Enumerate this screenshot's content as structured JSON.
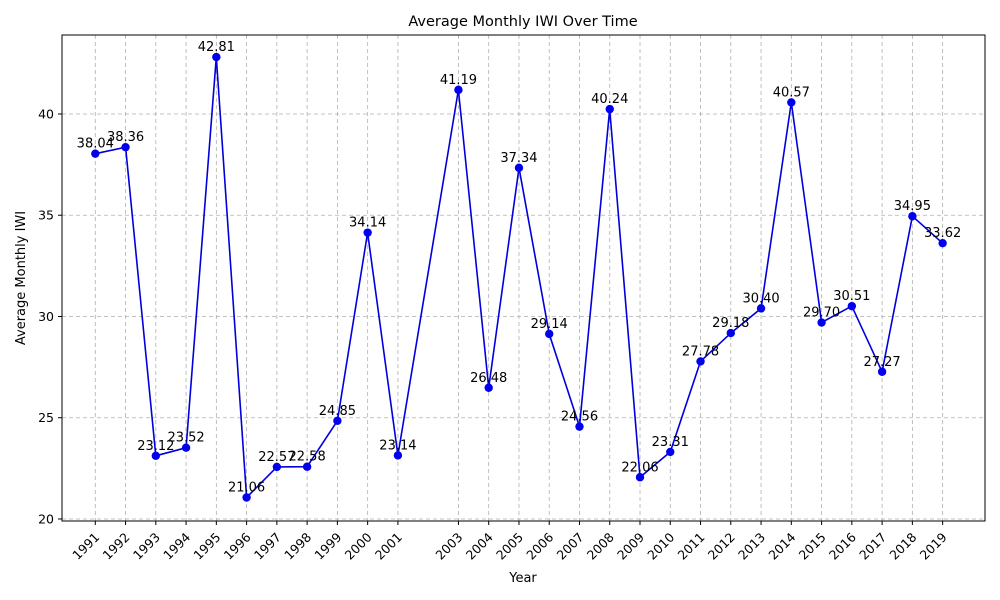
{
  "chart_data": {
    "type": "line",
    "title": "Average Monthly IWI Over Time",
    "xlabel": "Year",
    "ylabel": "Average Monthly IWI",
    "x": [
      1991,
      1992,
      1993,
      1994,
      1995,
      1996,
      1997,
      1998,
      1999,
      2000,
      2001,
      2003,
      2004,
      2005,
      2006,
      2007,
      2008,
      2009,
      2010,
      2011,
      2012,
      2013,
      2014,
      2015,
      2016,
      2017,
      2018,
      2019
    ],
    "xlim": [
      1989.9,
      2020.4
    ],
    "ylim": [
      19.9,
      43.9
    ],
    "yticks": [
      20,
      25,
      30,
      35,
      40
    ],
    "grid": true,
    "series": [
      {
        "color": "#0000dd",
        "marker": "circle",
        "values": [
          38.04,
          38.36,
          23.12,
          23.52,
          42.81,
          21.06,
          22.57,
          22.58,
          24.85,
          34.14,
          23.14,
          41.19,
          26.48,
          37.34,
          29.14,
          24.56,
          40.24,
          22.06,
          23.31,
          27.78,
          29.18,
          30.4,
          40.57,
          29.7,
          30.51,
          27.27,
          34.95,
          33.62
        ],
        "labels": [
          "38.04",
          "38.36",
          "23.12",
          "23.52",
          "42.81",
          "21.06",
          "22.57",
          "22.58",
          "24.85",
          "34.14",
          "23.14",
          "41.19",
          "26.48",
          "37.34",
          "29.14",
          "24.56",
          "40.24",
          "22.06",
          "23.31",
          "27.78",
          "29.18",
          "30.40",
          "40.57",
          "29.70",
          "30.51",
          "27.27",
          "34.95",
          "33.62"
        ]
      }
    ]
  }
}
